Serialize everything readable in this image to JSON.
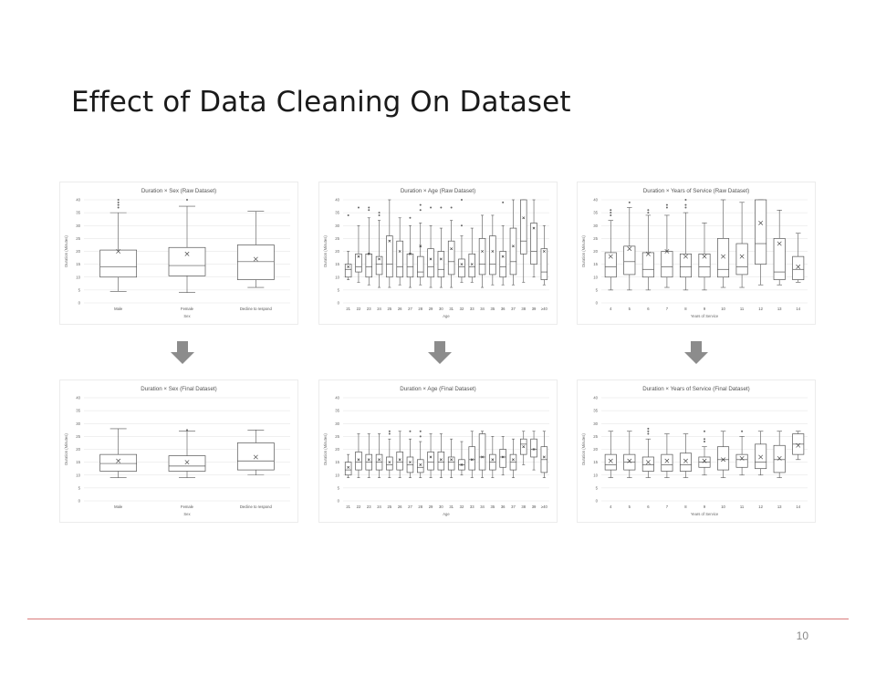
{
  "slide": {
    "title": "Effect of Data Cleaning On Dataset",
    "page_number": "10"
  },
  "icons": {
    "transition_arrow": "down-arrow-icon",
    "arrow_color": "#8c8c8c"
  },
  "colors": {
    "box_stroke": "#555555",
    "grid": "#e2e2e2",
    "footer_rule": "#d97a7a"
  },
  "chart_data": [
    {
      "type": "box",
      "title": "Duration × Sex (Raw Dataset)",
      "xlabel": "Sex",
      "ylabel": "Duration (Minutes)",
      "ylim": [
        0,
        40
      ],
      "yticks": [
        0,
        5,
        10,
        15,
        20,
        25,
        30,
        35,
        40
      ],
      "grid": true,
      "categories": [
        "Male",
        "Female",
        "Decline to respond"
      ],
      "boxes": [
        {
          "min": 4.5,
          "q1": 10,
          "median": 14,
          "q3": 20.5,
          "max": 35,
          "mean": 20,
          "outliers": [
            37,
            38,
            39,
            40
          ]
        },
        {
          "min": 4,
          "q1": 10.5,
          "median": 14.5,
          "q3": 21.5,
          "max": 37.5,
          "mean": 19,
          "outliers": [
            40
          ]
        },
        {
          "min": 6,
          "q1": 9,
          "median": 16,
          "q3": 22.5,
          "max": 35.5,
          "mean": 17,
          "outliers": []
        }
      ]
    },
    {
      "type": "box",
      "title": "Duration × Age (Raw Dataset)",
      "xlabel": "Age",
      "ylabel": "Duration (Minutes)",
      "ylim": [
        0,
        40
      ],
      "yticks": [
        0,
        5,
        10,
        15,
        20,
        25,
        30,
        35,
        40
      ],
      "grid": true,
      "categories": [
        "21",
        "22",
        "23",
        "24",
        "25",
        "26",
        "27",
        "28",
        "29",
        "30",
        "31",
        "32",
        "33",
        "34",
        "35",
        "36",
        "37",
        "38",
        "39",
        "≥40"
      ],
      "boxes": [
        {
          "min": 9,
          "q1": 10,
          "median": 13,
          "q3": 15,
          "max": 20,
          "mean": 14,
          "outliers": [
            34
          ]
        },
        {
          "min": 8,
          "q1": 12,
          "median": 14,
          "q3": 19,
          "max": 30,
          "mean": 18,
          "outliers": [
            37
          ]
        },
        {
          "min": 7,
          "q1": 10,
          "median": 14,
          "q3": 19,
          "max": 33,
          "mean": 19,
          "outliers": [
            36,
            37
          ]
        },
        {
          "min": 6,
          "q1": 11,
          "median": 15,
          "q3": 18,
          "max": 32,
          "mean": 17,
          "outliers": [
            34,
            35
          ]
        },
        {
          "min": 6,
          "q1": 10,
          "median": 15,
          "q3": 26,
          "max": 40,
          "mean": 24,
          "outliers": []
        },
        {
          "min": 7,
          "q1": 10,
          "median": 14,
          "q3": 24,
          "max": 33,
          "mean": 20,
          "outliers": []
        },
        {
          "min": 6,
          "q1": 10,
          "median": 14,
          "q3": 19,
          "max": 30,
          "mean": 19,
          "outliers": [
            33
          ]
        },
        {
          "min": 7,
          "q1": 10,
          "median": 12,
          "q3": 18,
          "max": 31,
          "mean": 22,
          "outliers": [
            36,
            38
          ]
        },
        {
          "min": 6,
          "q1": 10,
          "median": 14,
          "q3": 21,
          "max": 30,
          "mean": 17,
          "outliers": [
            37
          ]
        },
        {
          "min": 6,
          "q1": 10,
          "median": 13,
          "q3": 20,
          "max": 29,
          "mean": 17,
          "outliers": [
            37
          ]
        },
        {
          "min": 6,
          "q1": 11,
          "median": 16,
          "q3": 24,
          "max": 32,
          "mean": 21,
          "outliers": [
            37
          ]
        },
        {
          "min": 8,
          "q1": 10,
          "median": 14,
          "q3": 17,
          "max": 26,
          "mean": 15,
          "outliers": [
            30,
            40
          ]
        },
        {
          "min": 8,
          "q1": 10,
          "median": 14,
          "q3": 19,
          "max": 29,
          "mean": 15,
          "outliers": []
        },
        {
          "min": 6,
          "q1": 11,
          "median": 15,
          "q3": 25,
          "max": 34,
          "mean": 20,
          "outliers": []
        },
        {
          "min": 7,
          "q1": 11,
          "median": 15,
          "q3": 26,
          "max": 34,
          "mean": 20,
          "outliers": []
        },
        {
          "min": 7,
          "q1": 10,
          "median": 14,
          "q3": 20,
          "max": 30,
          "mean": 18,
          "outliers": [
            39
          ]
        },
        {
          "min": 7,
          "q1": 11,
          "median": 16,
          "q3": 29,
          "max": 40,
          "mean": 22,
          "outliers": []
        },
        {
          "min": 8,
          "q1": 19,
          "median": 24,
          "q3": 40,
          "max": 40,
          "mean": 33,
          "outliers": []
        },
        {
          "min": 10,
          "q1": 15,
          "median": 20,
          "q3": 31,
          "max": 40,
          "mean": 29,
          "outliers": []
        },
        {
          "min": 7,
          "q1": 9,
          "median": 12,
          "q3": 21,
          "max": 30,
          "mean": 20,
          "outliers": []
        }
      ]
    },
    {
      "type": "box",
      "title": "Duration × Years of Service (Raw Dataset)",
      "xlabel": "Years of Service",
      "ylabel": "Duration (Minutes)",
      "ylim": [
        0,
        40
      ],
      "yticks": [
        0,
        5,
        10,
        15,
        20,
        25,
        30,
        35,
        40
      ],
      "grid": true,
      "categories": [
        "4",
        "5",
        "6",
        "7",
        "8",
        "9",
        "10",
        "11",
        "12",
        "13",
        "14"
      ],
      "boxes": [
        {
          "min": 5,
          "q1": 10,
          "median": 14,
          "q3": 19.5,
          "max": 32,
          "mean": 18,
          "outliers": [
            34,
            35,
            36
          ]
        },
        {
          "min": 5,
          "q1": 11,
          "median": 16,
          "q3": 22,
          "max": 37,
          "mean": 21,
          "outliers": [
            39
          ]
        },
        {
          "min": 5,
          "q1": 10,
          "median": 13,
          "q3": 19.5,
          "max": 34,
          "mean": 19,
          "outliers": [
            35,
            36
          ]
        },
        {
          "min": 6,
          "q1": 10,
          "median": 14,
          "q3": 20,
          "max": 34,
          "mean": 20,
          "outliers": [
            37,
            38
          ]
        },
        {
          "min": 5,
          "q1": 10,
          "median": 14,
          "q3": 19,
          "max": 35,
          "mean": 18,
          "outliers": [
            37,
            38,
            40
          ]
        },
        {
          "min": 5,
          "q1": 10,
          "median": 14,
          "q3": 19,
          "max": 31,
          "mean": 18,
          "outliers": []
        },
        {
          "min": 6,
          "q1": 10,
          "median": 13,
          "q3": 25,
          "max": 40,
          "mean": 18,
          "outliers": []
        },
        {
          "min": 6,
          "q1": 11,
          "median": 14,
          "q3": 23,
          "max": 39,
          "mean": 18,
          "outliers": []
        },
        {
          "min": 7,
          "q1": 15,
          "median": 23,
          "q3": 40,
          "max": 40,
          "mean": 31,
          "outliers": []
        },
        {
          "min": 7,
          "q1": 9,
          "median": 12,
          "q3": 25,
          "max": 36,
          "mean": 23,
          "outliers": []
        },
        {
          "min": 8,
          "q1": 9,
          "median": 13,
          "q3": 18,
          "max": 27,
          "mean": 14,
          "outliers": []
        }
      ]
    },
    {
      "type": "box",
      "title": "Duration × Sex (Final Dataset)",
      "xlabel": "Sex",
      "ylabel": "Duration (Minutes)",
      "ylim": [
        0,
        40
      ],
      "yticks": [
        0,
        5,
        10,
        15,
        20,
        25,
        30,
        35,
        40
      ],
      "grid": true,
      "categories": [
        "Male",
        "Female",
        "Decline to respond"
      ],
      "boxes": [
        {
          "min": 9,
          "q1": 11.5,
          "median": 14.5,
          "q3": 18,
          "max": 28,
          "mean": 15.5,
          "outliers": []
        },
        {
          "min": 9,
          "q1": 11.5,
          "median": 13.5,
          "q3": 17.5,
          "max": 27,
          "mean": 15,
          "outliers": [
            27.5
          ]
        },
        {
          "min": 10,
          "q1": 12,
          "median": 15.5,
          "q3": 22.5,
          "max": 27.5,
          "mean": 17,
          "outliers": []
        }
      ]
    },
    {
      "type": "box",
      "title": "Duration × Age (Final Dataset)",
      "xlabel": "Age",
      "ylabel": "Duration (Minutes)",
      "ylim": [
        0,
        40
      ],
      "yticks": [
        0,
        5,
        10,
        15,
        20,
        25,
        30,
        35,
        40
      ],
      "grid": true,
      "categories": [
        "21",
        "22",
        "23",
        "24",
        "25",
        "26",
        "27",
        "28",
        "29",
        "30",
        "31",
        "32",
        "33",
        "34",
        "35",
        "36",
        "37",
        "38",
        "39",
        "≥40"
      ],
      "boxes": [
        {
          "min": 9,
          "q1": 10,
          "median": 12,
          "q3": 15,
          "max": 18,
          "mean": 13,
          "outliers": []
        },
        {
          "min": 9,
          "q1": 12,
          "median": 15,
          "q3": 19,
          "max": 26,
          "mean": 16,
          "outliers": []
        },
        {
          "min": 9,
          "q1": 12,
          "median": 15,
          "q3": 18,
          "max": 26,
          "mean": 16,
          "outliers": []
        },
        {
          "min": 9,
          "q1": 12,
          "median": 15,
          "q3": 18,
          "max": 26,
          "mean": 16,
          "outliers": []
        },
        {
          "min": 9,
          "q1": 12,
          "median": 14,
          "q3": 17,
          "max": 24,
          "mean": 15,
          "outliers": [
            26,
            27
          ]
        },
        {
          "min": 9,
          "q1": 12,
          "median": 15,
          "q3": 19,
          "max": 27,
          "mean": 16,
          "outliers": []
        },
        {
          "min": 9,
          "q1": 11,
          "median": 14,
          "q3": 17,
          "max": 24,
          "mean": 15,
          "outliers": [
            27
          ]
        },
        {
          "min": 9,
          "q1": 11,
          "median": 13,
          "q3": 16,
          "max": 23,
          "mean": 14,
          "outliers": [
            25,
            27
          ]
        },
        {
          "min": 9,
          "q1": 12,
          "median": 15,
          "q3": 19,
          "max": 26,
          "mean": 17,
          "outliers": []
        },
        {
          "min": 9,
          "q1": 12,
          "median": 15,
          "q3": 19,
          "max": 26,
          "mean": 16,
          "outliers": []
        },
        {
          "min": 9,
          "q1": 12,
          "median": 15,
          "q3": 17,
          "max": 24,
          "mean": 16,
          "outliers": []
        },
        {
          "min": 10,
          "q1": 12,
          "median": 14,
          "q3": 16,
          "max": 23,
          "mean": 14,
          "outliers": []
        },
        {
          "min": 9,
          "q1": 12,
          "median": 16,
          "q3": 21,
          "max": 27,
          "mean": 16,
          "outliers": []
        },
        {
          "min": 9,
          "q1": 12,
          "median": 17,
          "q3": 26,
          "max": 27,
          "mean": 17,
          "outliers": []
        },
        {
          "min": 9,
          "q1": 12,
          "median": 15,
          "q3": 18,
          "max": 25,
          "mean": 16,
          "outliers": []
        },
        {
          "min": 10,
          "q1": 13,
          "median": 17,
          "q3": 20,
          "max": 25,
          "mean": 17,
          "outliers": []
        },
        {
          "min": 9,
          "q1": 12,
          "median": 15,
          "q3": 18,
          "max": 24,
          "mean": 16,
          "outliers": []
        },
        {
          "min": 14,
          "q1": 18,
          "median": 22,
          "q3": 24,
          "max": 27,
          "mean": 21,
          "outliers": []
        },
        {
          "min": 12,
          "q1": 17,
          "median": 20,
          "q3": 24,
          "max": 27,
          "mean": 20,
          "outliers": []
        },
        {
          "min": 9,
          "q1": 11,
          "median": 16,
          "q3": 21,
          "max": 27,
          "mean": 17,
          "outliers": []
        }
      ]
    },
    {
      "type": "box",
      "title": "Duration × Years of Service (Final Dataset)",
      "xlabel": "Years of Service",
      "ylabel": "Duration (Minutes)",
      "ylim": [
        0,
        40
      ],
      "yticks": [
        0,
        5,
        10,
        15,
        20,
        25,
        30,
        35,
        40
      ],
      "grid": true,
      "categories": [
        "4",
        "5",
        "6",
        "7",
        "8",
        "9",
        "10",
        "11",
        "12",
        "13",
        "14"
      ],
      "boxes": [
        {
          "min": 9,
          "q1": 12,
          "median": 14,
          "q3": 18,
          "max": 27,
          "mean": 15.5,
          "outliers": []
        },
        {
          "min": 9,
          "q1": 12,
          "median": 15,
          "q3": 18,
          "max": 27,
          "mean": 15.5,
          "outliers": []
        },
        {
          "min": 9,
          "q1": 11.5,
          "median": 14,
          "q3": 17,
          "max": 24,
          "mean": 15,
          "outliers": [
            26,
            27,
            28
          ]
        },
        {
          "min": 9,
          "q1": 11.5,
          "median": 14,
          "q3": 18,
          "max": 26,
          "mean": 15.5,
          "outliers": []
        },
        {
          "min": 9,
          "q1": 11.5,
          "median": 14,
          "q3": 18.5,
          "max": 26,
          "mean": 15.5,
          "outliers": []
        },
        {
          "min": 10,
          "q1": 13,
          "median": 15,
          "q3": 17,
          "max": 21,
          "mean": 15.5,
          "outliers": [
            23,
            24,
            27
          ]
        },
        {
          "min": 9,
          "q1": 12,
          "median": 16,
          "q3": 21,
          "max": 27,
          "mean": 16,
          "outliers": []
        },
        {
          "min": 10,
          "q1": 13,
          "median": 16,
          "q3": 18,
          "max": 25,
          "mean": 16.5,
          "outliers": [
            27
          ]
        },
        {
          "min": 10,
          "q1": 12.5,
          "median": 15,
          "q3": 22,
          "max": 27,
          "mean": 17,
          "outliers": []
        },
        {
          "min": 9,
          "q1": 11,
          "median": 16,
          "q3": 21.5,
          "max": 27,
          "mean": 16.5,
          "outliers": []
        },
        {
          "min": 16,
          "q1": 18,
          "median": 22,
          "q3": 26,
          "max": 27,
          "mean": 21.5,
          "outliers": []
        }
      ]
    }
  ]
}
